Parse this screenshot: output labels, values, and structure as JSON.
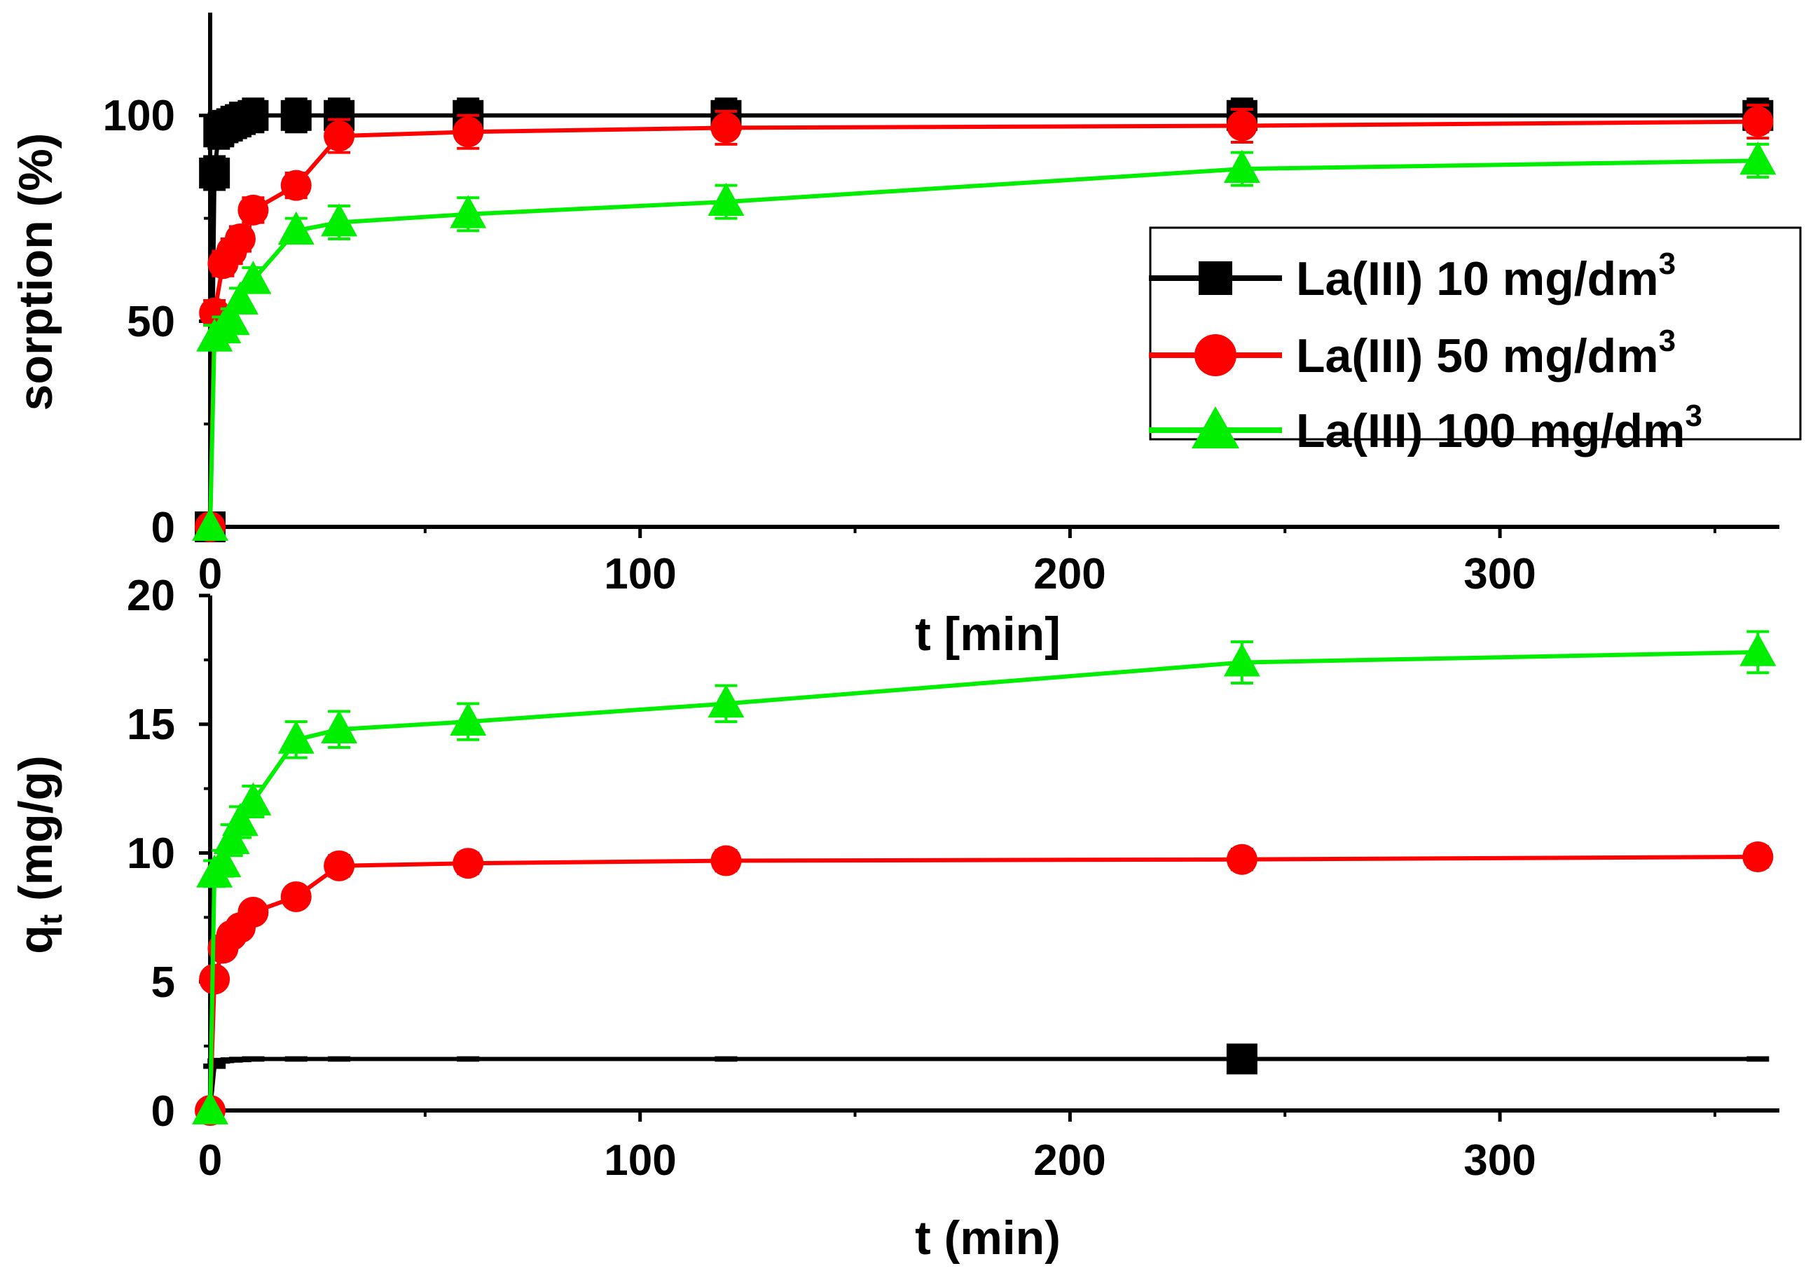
{
  "chart_data": [
    {
      "type": "line",
      "panel": "top",
      "title": "",
      "xlabel": "t [min]",
      "ylabel": "sorption (%)",
      "xlim": [
        0,
        365
      ],
      "ylim": [
        0,
        125
      ],
      "xticks": [
        0,
        100,
        200,
        300
      ],
      "yticks": [
        0,
        50,
        100
      ],
      "grid": false,
      "legend": "right",
      "series": [
        {
          "name": "La(III) 10 mg/dm",
          "name_sup": "3",
          "color": "#000000",
          "marker": "square",
          "x": [
            0,
            1,
            2,
            3,
            5,
            7,
            10,
            20,
            30,
            60,
            120,
            240,
            360
          ],
          "y": [
            0,
            86,
            96,
            97,
            98,
            99,
            100,
            100,
            100,
            100,
            100,
            100,
            100
          ],
          "err": [
            0,
            4,
            4,
            4,
            4,
            4,
            4,
            4,
            4,
            4,
            4,
            4,
            4
          ]
        },
        {
          "name": "La(III) 50 mg/dm",
          "name_sup": "3",
          "color": "#ff0000",
          "marker": "circle",
          "x": [
            0,
            1,
            3,
            5,
            7,
            10,
            20,
            30,
            60,
            120,
            240,
            360
          ],
          "y": [
            0,
            52,
            64,
            67,
            70,
            77,
            83,
            95,
            96,
            97,
            97.5,
            98.5
          ],
          "err": [
            0,
            3,
            3,
            3,
            3,
            3,
            3,
            4,
            4,
            4,
            4,
            4
          ]
        },
        {
          "name": "La(III) 100 mg/dm",
          "name_sup": "3",
          "color": "#00ee00",
          "marker": "triangle",
          "x": [
            0,
            1,
            3,
            5,
            7,
            10,
            20,
            30,
            60,
            120,
            240,
            360
          ],
          "y": [
            0,
            46,
            48,
            50,
            55,
            60,
            72,
            74,
            76,
            79,
            87,
            89
          ],
          "err": [
            0,
            3,
            3,
            3,
            3,
            3,
            3,
            4,
            4,
            4,
            4,
            4
          ]
        }
      ]
    },
    {
      "type": "line",
      "panel": "bottom",
      "title": "",
      "xlabel": "t (min)",
      "ylabel_main": "q",
      "ylabel_sub": "t",
      "ylabel_rest": " (mg/g)",
      "xlim": [
        0,
        365
      ],
      "ylim": [
        0,
        20
      ],
      "xticks": [
        0,
        100,
        200,
        300
      ],
      "yticks": [
        0,
        5,
        10,
        15,
        20
      ],
      "grid": false,
      "series": [
        {
          "name": "La(III) 10 mg/dm3",
          "color": "#000000",
          "marker": "square",
          "x": [
            0,
            1,
            2,
            3,
            5,
            7,
            10,
            20,
            30,
            60,
            120,
            240,
            360
          ],
          "y": [
            0,
            1.72,
            1.92,
            1.94,
            1.96,
            1.98,
            2.0,
            2.0,
            2.0,
            2.0,
            2.0,
            2.0,
            2.0
          ],
          "err": [
            0,
            0.05,
            0.05,
            0.05,
            0.05,
            0.05,
            0.05,
            0.05,
            0.05,
            0.05,
            0.05,
            0.05,
            0.05
          ],
          "visible_markers_x": [
            240
          ]
        },
        {
          "name": "La(III) 50 mg/dm3",
          "color": "#ff0000",
          "marker": "circle",
          "x": [
            0,
            1,
            3,
            5,
            7,
            10,
            20,
            30,
            60,
            120,
            240,
            360
          ],
          "y": [
            0,
            5.1,
            6.3,
            6.8,
            7.1,
            7.7,
            8.3,
            9.5,
            9.6,
            9.7,
            9.75,
            9.85
          ],
          "err": [
            0,
            0.3,
            0.3,
            0.3,
            0.3,
            0.3,
            0.3,
            0.4,
            0.4,
            0.4,
            0.4,
            0.4
          ]
        },
        {
          "name": "La(III) 100 mg/dm3",
          "color": "#00ee00",
          "marker": "triangle",
          "x": [
            0,
            1,
            3,
            5,
            7,
            10,
            20,
            30,
            60,
            120,
            240,
            360
          ],
          "y": [
            0,
            9.2,
            9.6,
            10.5,
            11.2,
            12.0,
            14.4,
            14.8,
            15.1,
            15.8,
            17.4,
            17.8
          ],
          "err": [
            0,
            0.5,
            0.5,
            0.6,
            0.6,
            0.6,
            0.7,
            0.7,
            0.7,
            0.7,
            0.8,
            0.8
          ]
        }
      ]
    }
  ]
}
